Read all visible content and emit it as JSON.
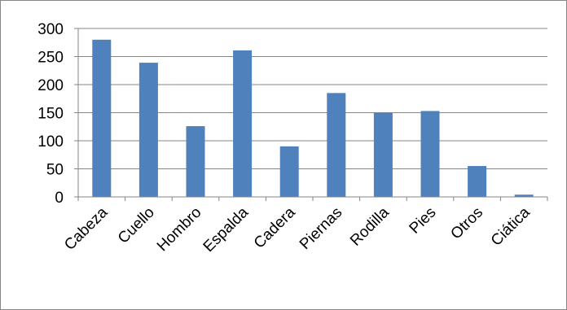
{
  "chart_data": {
    "type": "bar",
    "categories": [
      "Cabeza",
      "Cuello",
      "Hombro",
      "Espalda",
      "Cadera",
      "Piernas",
      "Rodilla",
      "Pies",
      "Otros",
      "Ciática"
    ],
    "values": [
      280,
      239,
      126,
      261,
      90,
      185,
      150,
      153,
      55,
      4
    ],
    "ylim": [
      0,
      300
    ],
    "yticks": [
      0,
      50,
      100,
      150,
      200,
      250,
      300
    ],
    "grid": true,
    "legend": "none",
    "title": "",
    "xlabel": "",
    "ylabel": "",
    "bar_color": "#4F81BD",
    "grid_color": "#868686"
  }
}
